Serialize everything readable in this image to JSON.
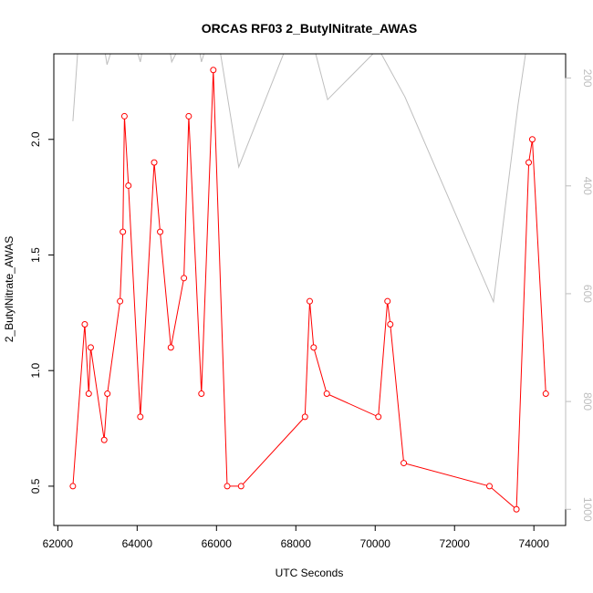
{
  "chart_data": {
    "type": "line",
    "title": "ORCAS RF03 2_ButylNitrate_AWAS",
    "xlabel": "UTC Seconds",
    "ylabel": "2_ButylNitrate_AWAS",
    "xlim": [
      61900,
      74800
    ],
    "ylim": [
      0.33,
      2.37
    ],
    "x_ticks": [
      62000,
      64000,
      66000,
      68000,
      70000,
      72000,
      74000
    ],
    "y_ticks": [
      0.5,
      1.0,
      1.5,
      2.0
    ],
    "y_tick_labels": [
      "0.5",
      "1.0",
      "1.5",
      "2.0"
    ],
    "y2_ticks": [
      200,
      400,
      600,
      800,
      1000
    ],
    "y2_lim": [
      1030,
      155
    ],
    "colors": {
      "main": "#ff0000",
      "secondary": "#bebebe"
    },
    "series": [
      {
        "axis": "left",
        "color": "#ff0000",
        "marker": "open-circle",
        "x": [
          62380,
          62680,
          62780,
          62830,
          63170,
          63250,
          63570,
          63640,
          63680,
          63780,
          64080,
          64430,
          64580,
          64850,
          65180,
          65300,
          65620,
          65920,
          66270,
          66620,
          68230,
          68350,
          68450,
          68780,
          70080,
          70310,
          70380,
          70720,
          72880,
          73560,
          73870,
          73960,
          74300
        ],
        "y": [
          0.5,
          1.2,
          0.9,
          1.1,
          0.7,
          0.9,
          1.3,
          1.6,
          2.1,
          1.8,
          0.8,
          1.9,
          1.6,
          1.1,
          1.4,
          2.1,
          0.9,
          2.3,
          0.5,
          0.5,
          0.8,
          1.3,
          1.1,
          0.9,
          0.8,
          1.3,
          1.2,
          0.6,
          0.5,
          0.4,
          1.9,
          2.0,
          0.9
        ]
      },
      {
        "axis": "right",
        "color": "#bebebe",
        "marker": "none",
        "x": [
          62380,
          62560,
          63060,
          63240,
          63700,
          63760,
          64080,
          64270,
          64700,
          64870,
          65430,
          65620,
          65960,
          66560,
          67850,
          68200,
          68800,
          70080,
          70750,
          72980,
          73600,
          74300
        ],
        "y": [
          280,
          90,
          90,
          175,
          70,
          90,
          170,
          90,
          90,
          170,
          90,
          170,
          90,
          365,
          125,
          70,
          240,
          145,
          235,
          615,
          250,
          -100
        ]
      }
    ]
  }
}
